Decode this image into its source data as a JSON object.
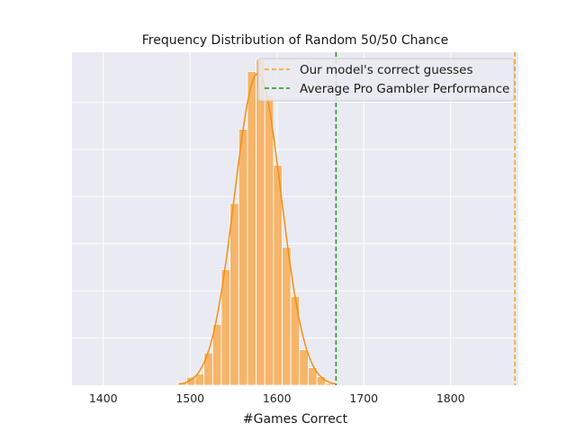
{
  "chart_data": {
    "type": "histogram",
    "title": "Frequency Distribution of Random 50/50 Chance",
    "xlabel": "#Games Correct",
    "ylabel": "",
    "xlim": [
      1364,
      1878
    ],
    "ylim": [
      0,
      705
    ],
    "x_ticks": [
      1400,
      1500,
      1600,
      1700,
      1800
    ],
    "x_tick_labels": [
      "1400",
      "1500",
      "1600",
      "1700",
      "1800"
    ],
    "grid": true,
    "legend_position": "top-right",
    "bin_width": 10,
    "bins": [
      {
        "x0": 1486,
        "count": 6
      },
      {
        "x0": 1496,
        "count": 17
      },
      {
        "x0": 1506,
        "count": 24
      },
      {
        "x0": 1516,
        "count": 68
      },
      {
        "x0": 1526,
        "count": 129
      },
      {
        "x0": 1536,
        "count": 245
      },
      {
        "x0": 1546,
        "count": 385
      },
      {
        "x0": 1556,
        "count": 542
      },
      {
        "x0": 1566,
        "count": 664
      },
      {
        "x0": 1576,
        "count": 690
      },
      {
        "x0": 1586,
        "count": 614
      },
      {
        "x0": 1596,
        "count": 466
      },
      {
        "x0": 1606,
        "count": 292
      },
      {
        "x0": 1616,
        "count": 188
      },
      {
        "x0": 1626,
        "count": 75
      },
      {
        "x0": 1636,
        "count": 37
      },
      {
        "x0": 1646,
        "count": 18
      },
      {
        "x0": 1656,
        "count": 4
      }
    ],
    "kde": {
      "mean": 1578,
      "sd": 27,
      "x_range": [
        1488,
        1668
      ],
      "peak": 660
    },
    "reference_lines": [
      {
        "name": "Our model's correct guesses",
        "x": 1874,
        "color": "#f5a01a",
        "style": "dashed"
      },
      {
        "name": "Average Pro Gambler Performance",
        "x": 1668,
        "color": "#1a9a1a",
        "style": "dashed"
      }
    ],
    "colors": {
      "bars": "#f5b56a",
      "bar_edge": "#ffffff",
      "kde": "#f28e16",
      "background": "#eaeaf2",
      "grid": "#ffffff"
    }
  }
}
